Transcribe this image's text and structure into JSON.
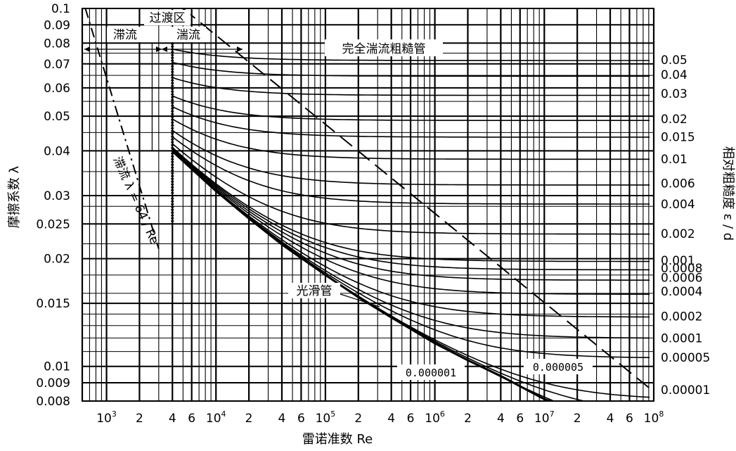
{
  "chart_data": {
    "type": "line",
    "title": "",
    "xlabel": "雷诺准数 Re",
    "ylabel": "摩擦系数 λ",
    "y2label": "相对粗糙度 ε / d",
    "x_scale": "log",
    "y_scale": "log",
    "xlim": [
      600,
      100000000
    ],
    "ylim": [
      0.008,
      0.1
    ],
    "grid": true,
    "x_ticks": [
      {
        "value": 1000,
        "base": "10",
        "exp": "3"
      },
      {
        "value": 2000,
        "base": "2",
        "exp": ""
      },
      {
        "value": 4000,
        "base": "4",
        "exp": ""
      },
      {
        "value": 6000,
        "base": "6",
        "exp": ""
      },
      {
        "value": 10000,
        "base": "10",
        "exp": "4"
      },
      {
        "value": 20000,
        "base": "2",
        "exp": ""
      },
      {
        "value": 40000,
        "base": "4",
        "exp": ""
      },
      {
        "value": 60000,
        "base": "6",
        "exp": ""
      },
      {
        "value": 100000,
        "base": "10",
        "exp": "5"
      },
      {
        "value": 200000,
        "base": "2",
        "exp": ""
      },
      {
        "value": 400000,
        "base": "4",
        "exp": ""
      },
      {
        "value": 600000,
        "base": "6",
        "exp": ""
      },
      {
        "value": 1000000,
        "base": "10",
        "exp": "6"
      },
      {
        "value": 2000000,
        "base": "2",
        "exp": ""
      },
      {
        "value": 4000000,
        "base": "4",
        "exp": ""
      },
      {
        "value": 6000000,
        "base": "6",
        "exp": ""
      },
      {
        "value": 10000000,
        "base": "10",
        "exp": "7"
      },
      {
        "value": 20000000,
        "base": "2",
        "exp": ""
      },
      {
        "value": 40000000,
        "base": "4",
        "exp": ""
      },
      {
        "value": 60000000,
        "base": "6",
        "exp": ""
      },
      {
        "value": 100000000,
        "base": "10",
        "exp": "8"
      }
    ],
    "y_ticks": [
      {
        "value": 0.1,
        "label": "0.1"
      },
      {
        "value": 0.09,
        "label": "0.09"
      },
      {
        "value": 0.08,
        "label": "0.08"
      },
      {
        "value": 0.07,
        "label": "0.07"
      },
      {
        "value": 0.06,
        "label": "0.06"
      },
      {
        "value": 0.05,
        "label": "0.05"
      },
      {
        "value": 0.04,
        "label": "0.04"
      },
      {
        "value": 0.03,
        "label": "0.03"
      },
      {
        "value": 0.025,
        "label": "0.025"
      },
      {
        "value": 0.02,
        "label": "0.02"
      },
      {
        "value": 0.015,
        "label": "0.015"
      },
      {
        "value": 0.01,
        "label": "0.01"
      },
      {
        "value": 0.009,
        "label": "0.009"
      },
      {
        "value": 0.008,
        "label": "0.008"
      }
    ],
    "roughness_labels": [
      {
        "value": 0.05,
        "label": "0.05",
        "f": 0.0718
      },
      {
        "value": 0.04,
        "label": "0.04",
        "f": 0.0654
      },
      {
        "value": 0.03,
        "label": "0.03",
        "f": 0.0578
      },
      {
        "value": 0.02,
        "label": "0.02",
        "f": 0.0491
      },
      {
        "value": 0.015,
        "label": "0.015",
        "f": 0.0438
      },
      {
        "value": 0.01,
        "label": "0.01",
        "f": 0.038
      },
      {
        "value": 0.006,
        "label": "0.006",
        "f": 0.0325
      },
      {
        "value": 0.004,
        "label": "0.004",
        "f": 0.0284
      },
      {
        "value": 0.002,
        "label": "0.002",
        "f": 0.0235
      },
      {
        "value": 0.001,
        "label": "0.001",
        "f": 0.0198
      },
      {
        "value": 0.0008,
        "label": "0.0008",
        "f": 0.0188
      },
      {
        "value": 0.0006,
        "label": "0.0006",
        "f": 0.0177
      },
      {
        "value": 0.0004,
        "label": "0.0004",
        "f": 0.0162
      },
      {
        "value": 0.0002,
        "label": "0.0002",
        "f": 0.0138
      },
      {
        "value": 0.0001,
        "label": "0.0001",
        "f": 0.012
      },
      {
        "value": 5e-05,
        "label": "0.00005",
        "f": 0.0106
      },
      {
        "value": 1e-05,
        "label": "0.00001",
        "f": 0.0086
      }
    ],
    "extra_curves": [
      5e-06,
      1e-06
    ],
    "smooth_pipe_points": [
      [
        4000,
        0.0399
      ],
      [
        6000,
        0.0356
      ],
      [
        10000,
        0.0309
      ],
      [
        20000,
        0.0259
      ],
      [
        40000,
        0.0219
      ],
      [
        100000,
        0.018
      ],
      [
        200000,
        0.0156
      ],
      [
        400000,
        0.0137
      ],
      [
        1000000,
        0.0116
      ],
      [
        2000000,
        0.0104
      ],
      [
        4000000,
        0.0094
      ],
      [
        10000000,
        0.0081
      ],
      [
        20000000,
        0.0075
      ],
      [
        60000000,
        0.0066
      ]
    ],
    "laminar_points": [
      [
        640,
        0.1
      ],
      [
        3000,
        0.0213
      ]
    ],
    "zone_boundary_points": [
      [
        5000,
        0.1
      ],
      [
        100000000,
        0.0085
      ]
    ],
    "critical_re": 2000,
    "transition_re": 4000,
    "annotations": {
      "laminar": "滞流",
      "transition": "过渡区",
      "turbulent": "湍流",
      "rough": "完全湍流粗糙管",
      "laminar_formula": "滞流 λ = 64 / Re",
      "smooth": "光滑管",
      "box_a": "0.000001",
      "box_b": "0.000005"
    }
  }
}
